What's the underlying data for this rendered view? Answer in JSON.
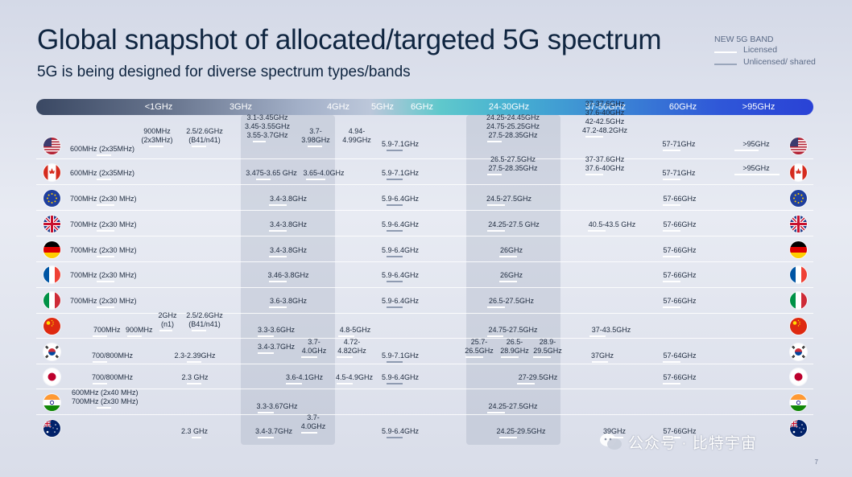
{
  "header": {
    "title": "Global snapshot of allocated/targeted 5G spectrum",
    "subtitle": "5G is being designed for diverse spectrum types/bands"
  },
  "legend": {
    "title": "NEW 5G BAND",
    "licensed": "Licensed",
    "unlicensed": "Unlicensed/ shared"
  },
  "bands": [
    "<1GHz",
    "3GHz",
    "4GHz",
    "5GHz",
    "6GHz",
    "24-30GHz",
    "37-50GHz",
    "60GHz",
    ">95GHz"
  ],
  "countries": [
    {
      "name": "United States",
      "flag": "us-flag-icon",
      "cells": [
        "600MHz (2x35MHz)",
        "900MHz\n(2x3MHz)",
        "2.5/2.6GHz\n(B41/n41)",
        "3.1-3.45GHz\n3.45-3.55GHz\n3.55-3.7GHz",
        "3.7-\n3.98GHz",
        "4.94-\n4.99GHz",
        "5.9-7.1GHz",
        "24.25-24.45GHz\n24.75-25.25GHz\n27.5-28.35GHz",
        "37-37.6GHz\n37.6-40GHz\n42-42.5GHz\n47.2-48.2GHz",
        "57-71GHz",
        ">95GHz"
      ]
    },
    {
      "name": "Canada",
      "flag": "canada-flag-icon",
      "cells": [
        "600MHz (2x35MHz)",
        "3.475-3.65 GHz",
        "3.65-4.0GHz",
        "5.9-7.1GHz",
        "26.5-27.5GHz\n27.5-28.35GHz",
        "37-37.6GHz\n37.6-40GHz",
        "57-71GHz",
        ">95GHz"
      ]
    },
    {
      "name": "European Union",
      "flag": "eu-flag-icon",
      "cells": [
        "700MHz (2x30 MHz)",
        "3.4-3.8GHz",
        "5.9-6.4GHz",
        "24.5-27.5GHz",
        "57-66GHz"
      ]
    },
    {
      "name": "United Kingdom",
      "flag": "uk-flag-icon",
      "cells": [
        "700MHz (2x30 MHz)",
        "3.4-3.8GHz",
        "5.9-6.4GHz",
        "24.25-27.5 GHz",
        "40.5-43.5 GHz",
        "57-66GHz"
      ]
    },
    {
      "name": "Germany",
      "flag": "germany-flag-icon",
      "cells": [
        "700MHz (2x30 MHz)",
        "3.4-3.8GHz",
        "5.9-6.4GHz",
        "26GHz",
        "57-66GHz"
      ]
    },
    {
      "name": "France",
      "flag": "france-flag-icon",
      "cells": [
        "700MHz (2x30 MHz)",
        "3.46-3.8GHz",
        "5.9-6.4GHz",
        "26GHz",
        "57-66GHz"
      ]
    },
    {
      "name": "Italy",
      "flag": "italy-flag-icon",
      "cells": [
        "700MHz (2x30 MHz)",
        "3.6-3.8GHz",
        "5.9-6.4GHz",
        "26.5-27.5GHz",
        "57-66GHz"
      ]
    },
    {
      "name": "China",
      "flag": "china-flag-icon",
      "cells": [
        "700MHz",
        "900MHz",
        "2GHz\n(n1)",
        "2.5/2.6GHz\n(B41/n41)",
        "3.3-3.6GHz",
        "4.8-5GHz",
        "24.75-27.5GHz",
        "37-43.5GHz"
      ]
    },
    {
      "name": "South Korea",
      "flag": "korea-flag-icon",
      "cells": [
        "700/800MHz",
        "2.3-2.39GHz",
        "3.4-3.7GHz",
        "3.7-\n4.0GHz",
        "4.72-\n4.82GHz",
        "5.9-7.1GHz",
        "25.7-\n26.5GHz",
        "26.5-\n28.9GHz",
        "28.9-\n29.5GHz",
        "37GHz",
        "57-64GHz"
      ]
    },
    {
      "name": "Japan",
      "flag": "japan-flag-icon",
      "cells": [
        "700/800MHz",
        "2.3 GHz",
        "3.6-4.1GHz",
        "4.5-4.9GHz",
        "5.9-6.4GHz",
        "27-29.5GHz",
        "57-66GHz"
      ]
    },
    {
      "name": "India",
      "flag": "india-flag-icon",
      "cells": [
        "600MHz (2x40 MHz)\n700MHz (2x30 MHz)",
        "3.3-3.67GHz",
        "24.25-27.5GHz"
      ]
    },
    {
      "name": "Australia",
      "flag": "australia-flag-icon",
      "cells": [
        "2.3 GHz",
        "3.4-3.7GHz",
        "3.7-\n4.0GHz",
        "5.9-6.4GHz",
        "24.25-29.5GHz",
        "39GHz",
        "57-66GHz"
      ]
    }
  ],
  "watermark": "公众号 · 比特宇宙",
  "page_number": "7",
  "colors": {
    "title": "#0f2540",
    "licensed": "#ffffff",
    "unlicensed": "#8f9bb1",
    "shade": "#a6b0c4"
  }
}
